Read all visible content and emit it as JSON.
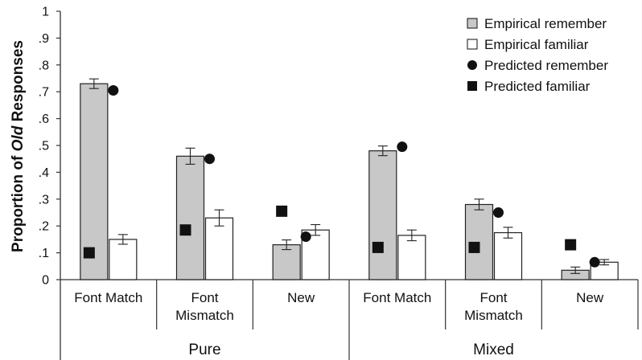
{
  "chart_data": {
    "type": "bar",
    "ylabel_parts": [
      "Proportion of ",
      "Old",
      " Responses"
    ],
    "ylim": [
      0,
      1
    ],
    "yticks": [
      0,
      0.1,
      0.2,
      0.3,
      0.4,
      0.5,
      0.6,
      0.7,
      0.8,
      0.9,
      1
    ],
    "ytick_labels": [
      "0",
      ".1",
      ".2",
      ".3",
      ".4",
      ".5",
      ".6",
      ".7",
      ".8",
      ".9",
      "1"
    ],
    "groups": [
      {
        "label": "Pure",
        "categories": [
          "Font Match",
          "Font\nMismatch",
          "New"
        ]
      },
      {
        "label": "Mixed",
        "categories": [
          "Font Match",
          "Font\nMismatch",
          "New"
        ]
      }
    ],
    "categories": [
      "Font Match",
      "Font Mismatch",
      "New",
      "Font Match",
      "Font Mismatch",
      "New"
    ],
    "series": [
      {
        "name": "Empirical remember",
        "kind": "bar",
        "color": "#c8c8c8",
        "values": [
          0.73,
          0.46,
          0.13,
          0.48,
          0.28,
          0.035
        ],
        "errors": [
          0.018,
          0.03,
          0.018,
          0.018,
          0.02,
          0.012
        ]
      },
      {
        "name": "Empirical familiar",
        "kind": "bar",
        "color": "#ffffff",
        "values": [
          0.15,
          0.23,
          0.185,
          0.165,
          0.175,
          0.065
        ],
        "errors": [
          0.018,
          0.03,
          0.02,
          0.02,
          0.02,
          0.01
        ]
      },
      {
        "name": "Predicted remember",
        "kind": "marker",
        "marker": "circle",
        "color": "#111111",
        "values": [
          0.705,
          0.45,
          0.16,
          0.495,
          0.25,
          0.065
        ]
      },
      {
        "name": "Predicted familiar",
        "kind": "marker",
        "marker": "square",
        "color": "#111111",
        "values": [
          0.1,
          0.185,
          0.255,
          0.12,
          0.12,
          0.13
        ]
      }
    ],
    "legend_position": "top-right",
    "grid": false
  }
}
